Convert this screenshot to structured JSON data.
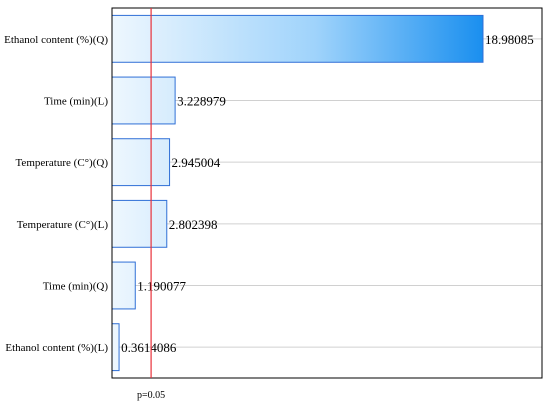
{
  "chart_data": {
    "type": "bar",
    "orientation": "horizontal",
    "categories": [
      "Ethanol content (%)(Q)",
      "Time (min)(L)",
      "Temperature (C°)(Q)",
      "Temperature (C°)(L)",
      "Time (min)(Q)",
      "Ethanol content (%)(L)"
    ],
    "values": [
      18.98085,
      3.228979,
      2.945004,
      2.802398,
      1.190077,
      0.3614086
    ],
    "value_labels": [
      "18.98085",
      "3.228979",
      "2.945004",
      "2.802398",
      "1.190077",
      "0.3614086"
    ],
    "title": "",
    "xlabel": "",
    "ylabel": "",
    "xlim": [
      0,
      22
    ],
    "grid": true,
    "reference_line": {
      "value": 2.0,
      "label": "p=0.05",
      "color": "#e8303a"
    },
    "colors": {
      "bar_light": "#eef7fe",
      "bar_dark": "#1a8fef",
      "bar_border": "#2f6fd6",
      "grid": "#d0d0d0",
      "axis": "#000000"
    }
  }
}
